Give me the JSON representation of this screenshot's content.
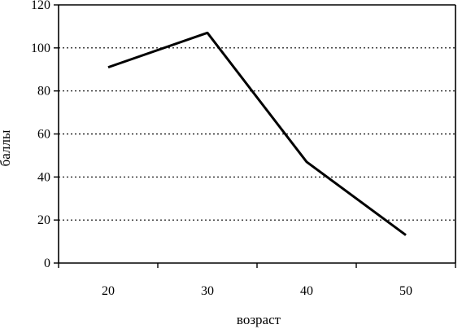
{
  "chart_data": {
    "type": "line",
    "x": [
      20,
      30,
      40,
      50
    ],
    "categories": [
      "20",
      "30",
      "40",
      "50"
    ],
    "series": [
      {
        "values": [
          91,
          107,
          47,
          13
        ]
      }
    ],
    "xlabel": "возраст",
    "ylabel": "баллы",
    "ylim": [
      0,
      120
    ],
    "yticks": [
      0,
      20,
      40,
      60,
      80,
      100,
      120
    ],
    "grid": "horizontal dotted",
    "line_color": "#000000"
  }
}
